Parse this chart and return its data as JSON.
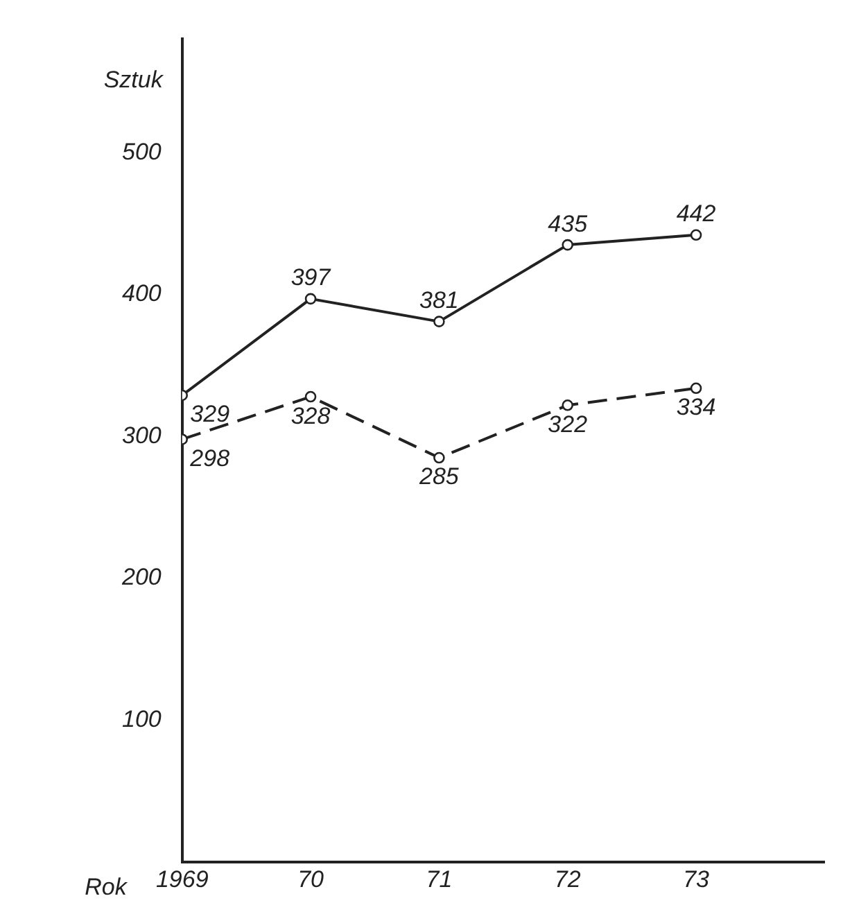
{
  "chart_data": {
    "type": "line",
    "xlabel": "Rok",
    "ylabel": "Sztuk",
    "x": [
      1969,
      1970,
      1971,
      1972,
      1973
    ],
    "series": [
      {
        "color": "#222222",
        "values": [
          329,
          397,
          381,
          435,
          442
        ],
        "line_style": "solid"
      },
      {
        "color": "#222222",
        "values": [
          298,
          328,
          285,
          322,
          334
        ],
        "line_style": "dashed"
      }
    ],
    "xlim": [
      1969,
      1974
    ],
    "xticks": [
      {
        "value": 1969,
        "label": "1969"
      },
      {
        "value": 1970,
        "label": "70"
      },
      {
        "value": 1971,
        "label": "71"
      },
      {
        "value": 1972,
        "label": "72"
      },
      {
        "value": 1973,
        "label": "73"
      }
    ],
    "ylim": [
      0,
      580
    ],
    "yticks": [
      100,
      200,
      300,
      400,
      500
    ],
    "grid": false,
    "legend": false,
    "marker": "circle",
    "data_labels": true
  }
}
